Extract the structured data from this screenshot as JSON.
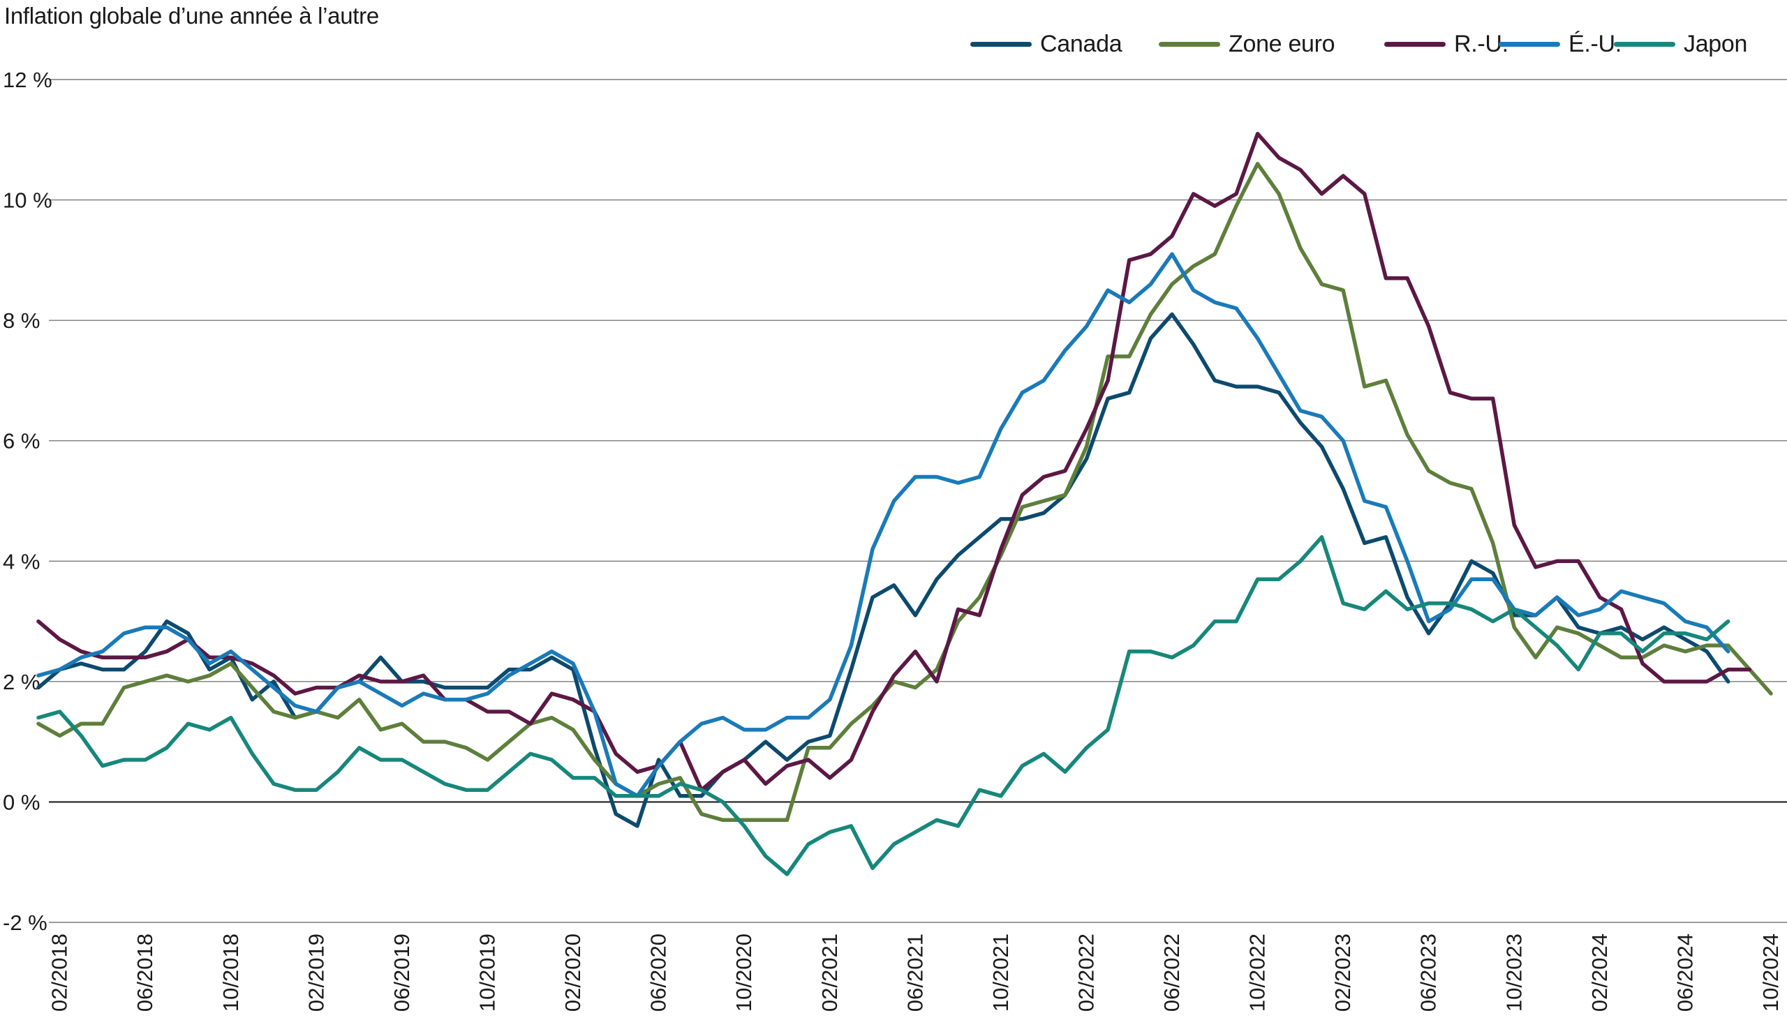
{
  "chart_data": {
    "type": "line",
    "title": "Inflation globale d’une année à l’autre",
    "xlabel": "",
    "ylabel": "",
    "ylim": [
      -2,
      12
    ],
    "yticks": [
      -2,
      0,
      2,
      4,
      6,
      8,
      10,
      12
    ],
    "ytick_labels": [
      "-2 %",
      "0 %",
      "2 %",
      "4 %",
      "6 %",
      "8 %",
      "10 %",
      "12 %"
    ],
    "x_start": "01/2018",
    "xtick_labels": [
      "02/2018",
      "06/2018",
      "10/2018",
      "02/2019",
      "06/2019",
      "10/2019",
      "02/2020",
      "06/2020",
      "10/2020",
      "02/2021",
      "06/2021",
      "10/2021",
      "02/2022",
      "06/2022",
      "10/2022",
      "02/2023",
      "06/2023",
      "10/2023",
      "02/2024",
      "06/2024",
      "10/2024"
    ],
    "grid": true,
    "legend_position": "top-right",
    "series": [
      {
        "name": "Canada",
        "color": "#0c4a6e",
        "values": [
          1.9,
          2.2,
          2.3,
          2.2,
          2.2,
          2.5,
          3.0,
          2.8,
          2.2,
          2.4,
          1.7,
          2.0,
          1.4,
          1.5,
          1.9,
          2.0,
          2.4,
          2.0,
          2.0,
          1.9,
          1.9,
          1.9,
          2.2,
          2.2,
          2.4,
          2.2,
          0.9,
          -0.2,
          -0.4,
          0.7,
          0.1,
          0.1,
          0.5,
          0.7,
          1.0,
          0.7,
          1.0,
          1.1,
          2.2,
          3.4,
          3.6,
          3.1,
          3.7,
          4.1,
          4.4,
          4.7,
          4.7,
          4.8,
          5.1,
          5.7,
          6.7,
          6.8,
          7.7,
          8.1,
          7.6,
          7.0,
          6.9,
          6.9,
          6.8,
          6.3,
          5.9,
          5.2,
          4.3,
          4.4,
          3.4,
          2.8,
          3.3,
          4.0,
          3.8,
          3.1,
          3.1,
          3.4,
          2.9,
          2.8,
          2.9,
          2.7,
          2.9,
          2.7,
          2.5,
          2.0
        ],
        "end_index": 79
      },
      {
        "name": "Zone euro",
        "color": "#5e7f3b",
        "values": [
          1.3,
          1.1,
          1.3,
          1.3,
          1.9,
          2.0,
          2.1,
          2.0,
          2.1,
          2.3,
          1.9,
          1.5,
          1.4,
          1.5,
          1.4,
          1.7,
          1.2,
          1.3,
          1.0,
          1.0,
          0.9,
          0.7,
          1.0,
          1.3,
          1.4,
          1.2,
          0.7,
          0.3,
          0.1,
          0.3,
          0.4,
          -0.2,
          -0.3,
          -0.3,
          -0.3,
          -0.3,
          0.9,
          0.9,
          1.3,
          1.6,
          2.0,
          1.9,
          2.2,
          3.0,
          3.4,
          4.1,
          4.9,
          5.0,
          5.1,
          5.9,
          7.4,
          7.4,
          8.1,
          8.6,
          8.9,
          9.1,
          9.9,
          10.6,
          10.1,
          9.2,
          8.6,
          8.5,
          6.9,
          7.0,
          6.1,
          5.5,
          5.3,
          5.2,
          4.3,
          2.9,
          2.4,
          2.9,
          2.8,
          2.6,
          2.4,
          2.4,
          2.6,
          2.5,
          2.6,
          2.6,
          2.2,
          1.8
        ],
        "end_index": 81
      },
      {
        "name": "R.-U.",
        "color": "#5c1844",
        "values": [
          3.0,
          2.7,
          2.5,
          2.4,
          2.4,
          2.4,
          2.5,
          2.7,
          2.4,
          2.4,
          2.3,
          2.1,
          1.8,
          1.9,
          1.9,
          2.1,
          2.0,
          2.0,
          2.1,
          1.7,
          1.7,
          1.5,
          1.5,
          1.3,
          1.8,
          1.7,
          1.5,
          0.8,
          0.5,
          0.6,
          1.0,
          0.2,
          0.5,
          0.7,
          0.3,
          0.6,
          0.7,
          0.4,
          0.7,
          1.5,
          2.1,
          2.5,
          2.0,
          3.2,
          3.1,
          4.2,
          5.1,
          5.4,
          5.5,
          6.2,
          7.0,
          9.0,
          9.1,
          9.4,
          10.1,
          9.9,
          10.1,
          11.1,
          10.7,
          10.5,
          10.1,
          10.4,
          10.1,
          8.7,
          8.7,
          7.9,
          6.8,
          6.7,
          6.7,
          4.6,
          3.9,
          4.0,
          4.0,
          3.4,
          3.2,
          2.3,
          2.0,
          2.0,
          2.0,
          2.2,
          2.2
        ],
        "end_index": 80
      },
      {
        "name": "É.-U.",
        "color": "#1a7ab8",
        "values": [
          2.1,
          2.2,
          2.4,
          2.5,
          2.8,
          2.9,
          2.9,
          2.7,
          2.3,
          2.5,
          2.2,
          1.9,
          1.6,
          1.5,
          1.9,
          2.0,
          1.8,
          1.6,
          1.8,
          1.7,
          1.7,
          1.8,
          2.1,
          2.3,
          2.5,
          2.3,
          1.5,
          0.3,
          0.1,
          0.6,
          1.0,
          1.3,
          1.4,
          1.2,
          1.2,
          1.4,
          1.4,
          1.7,
          2.6,
          4.2,
          5.0,
          5.4,
          5.4,
          5.3,
          5.4,
          6.2,
          6.8,
          7.0,
          7.5,
          7.9,
          8.5,
          8.3,
          8.6,
          9.1,
          8.5,
          8.3,
          8.2,
          7.7,
          7.1,
          6.5,
          6.4,
          6.0,
          5.0,
          4.9,
          4.0,
          3.0,
          3.2,
          3.7,
          3.7,
          3.2,
          3.1,
          3.4,
          3.1,
          3.2,
          3.5,
          3.4,
          3.3,
          3.0,
          2.9,
          2.5,
          2.4
        ],
        "end_index": 79
      },
      {
        "name": "Japon",
        "color": "#17877b",
        "values": [
          1.4,
          1.5,
          1.1,
          0.6,
          0.7,
          0.7,
          0.9,
          1.3,
          1.2,
          1.4,
          0.8,
          0.3,
          0.2,
          0.2,
          0.5,
          0.9,
          0.7,
          0.7,
          0.5,
          0.3,
          0.2,
          0.2,
          0.5,
          0.8,
          0.7,
          0.4,
          0.4,
          0.1,
          0.1,
          0.1,
          0.3,
          0.2,
          0.0,
          -0.4,
          -0.9,
          -1.2,
          -0.7,
          -0.5,
          -0.4,
          -1.1,
          -0.7,
          -0.5,
          -0.3,
          -0.4,
          0.2,
          0.1,
          0.6,
          0.8,
          0.5,
          0.9,
          1.2,
          2.5,
          2.5,
          2.4,
          2.6,
          3.0,
          3.0,
          3.7,
          3.7,
          4.0,
          4.4,
          3.3,
          3.2,
          3.5,
          3.2,
          3.3,
          3.3,
          3.2,
          3.0,
          3.2,
          2.9,
          2.6,
          2.2,
          2.8,
          2.8,
          2.5,
          2.8,
          2.8,
          2.7,
          3.0
        ],
        "end_index": 79
      }
    ]
  }
}
